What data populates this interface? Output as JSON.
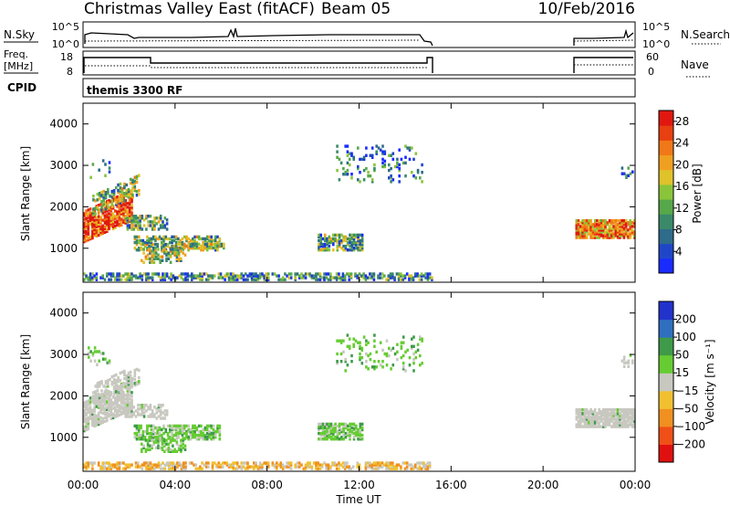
{
  "header": {
    "title": "Christmas Valley East (fitACF)",
    "beam": "Beam 05",
    "date": "10/Feb/2016"
  },
  "strip_panels": {
    "nsky_label": "N.Sky",
    "nsky_ticks": [
      "10^5",
      "10^0"
    ],
    "nsearch_label": "N.Search",
    "nsearch_ticks": [
      "10^5",
      "10^0"
    ],
    "freq_label_1": "Freq.",
    "freq_label_2": "[MHz]",
    "freq_ticks": [
      "18",
      "8"
    ],
    "nave_label": "Nave",
    "nave_ticks": [
      "60",
      "0"
    ],
    "cpid_label": "CPID",
    "cpid_value": "themis 3300 RF"
  },
  "chart_data": [
    {
      "type": "heatmap",
      "name": "power",
      "ylabel": "Slant Range [km]",
      "xlabel": "",
      "ylim": [
        180,
        4500
      ],
      "xlim_hours": [
        0,
        24
      ],
      "y_ticks": [
        "1000",
        "2000",
        "3000",
        "4000"
      ],
      "colorbar": {
        "label": "Power [dB]",
        "ticks": [
          "4",
          "8",
          "12",
          "16",
          "20",
          "24",
          "28"
        ],
        "range": [
          0,
          30
        ],
        "colors": [
          "#1a2bff",
          "#2046c8",
          "#2f6b8a",
          "#3a8a6a",
          "#57a84a",
          "#8ac43a",
          "#e0c22a",
          "#f0a020",
          "#f07818",
          "#e84010",
          "#e01810"
        ]
      },
      "data_gaps_hours": [
        [
          15.3,
          21.4
        ]
      ]
    },
    {
      "type": "heatmap",
      "name": "velocity",
      "ylabel": "Slant Range [km]",
      "xlabel": "Time UT",
      "ylim": [
        180,
        4500
      ],
      "xlim_hours": [
        0,
        24
      ],
      "y_ticks": [
        "1000",
        "2000",
        "3000",
        "4000"
      ],
      "x_ticks": [
        "00:00",
        "04:00",
        "08:00",
        "12:00",
        "16:00",
        "20:00",
        "00:00"
      ],
      "colorbar": {
        "label": "Velocity [m s⁻¹]",
        "ticks": [
          "200",
          "100",
          "50",
          "15",
          "−15",
          "−50",
          "−100",
          "−200"
        ],
        "colors": [
          "#2233cc",
          "#2f6fbf",
          "#3f9a4a",
          "#66cc33",
          "#c8c8c0",
          "#f0c030",
          "#f09020",
          "#f05018",
          "#e01010"
        ]
      },
      "data_gaps_hours": [
        [
          15.3,
          21.4
        ]
      ]
    }
  ],
  "colors": {
    "ground_scatter": "#c8c8c0"
  }
}
